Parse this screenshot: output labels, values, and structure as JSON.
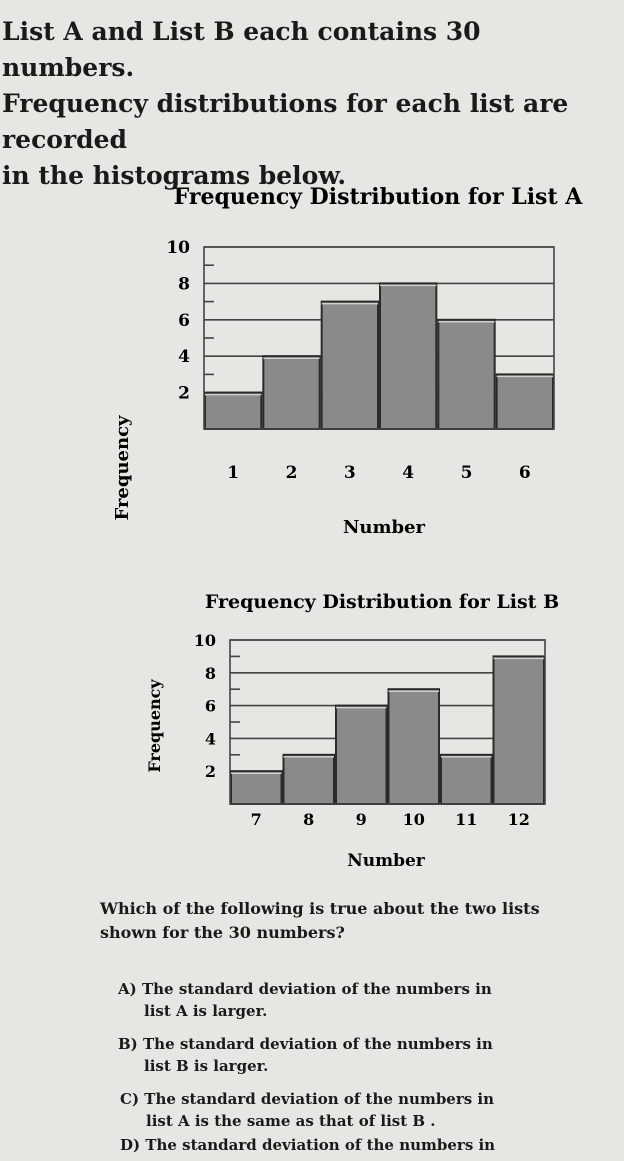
{
  "intro": {
    "line1": "List A and List B each contains 30 numbers.",
    "line2": "Frequency distributions for each list are recorded",
    "line3": "in the histograms below."
  },
  "chart_data": [
    {
      "type": "bar",
      "title": "Frequency Distribution for List A",
      "xlabel": "Number",
      "ylabel": "Frequency",
      "categories": [
        "1",
        "2",
        "3",
        "4",
        "5",
        "6"
      ],
      "values": [
        2,
        4,
        7,
        8,
        6,
        3
      ],
      "ylim": [
        0,
        10
      ],
      "yticks": [
        "2",
        "4",
        "6",
        "8",
        "10"
      ],
      "grid": true
    },
    {
      "type": "bar",
      "title": "Frequency Distribution for List B",
      "xlabel": "Number",
      "ylabel": "Frequency",
      "categories": [
        "7",
        "8",
        "9",
        "10",
        "11",
        "12"
      ],
      "values": [
        2,
        3,
        6,
        7,
        3,
        9
      ],
      "ylim": [
        0,
        10
      ],
      "yticks": [
        "2",
        "4",
        "6",
        "8",
        "10"
      ],
      "grid": true
    }
  ],
  "question": {
    "line1": "Which of the following is true about the two lists",
    "line2": "shown for the 30 numbers?"
  },
  "options": [
    {
      "letter": "A)",
      "line1": "The standard deviation of the numbers in",
      "line2": "list A is larger."
    },
    {
      "letter": "B)",
      "line1": "The standard deviation of the numbers in",
      "line2": "list B is larger."
    },
    {
      "letter": "C)",
      "line1": "The standard deviation of the numbers in",
      "line2": "list A is the same as that of list B ."
    },
    {
      "letter": "D)",
      "line1": "The standard deviation of the numbers in",
      "line2": ""
    }
  ]
}
